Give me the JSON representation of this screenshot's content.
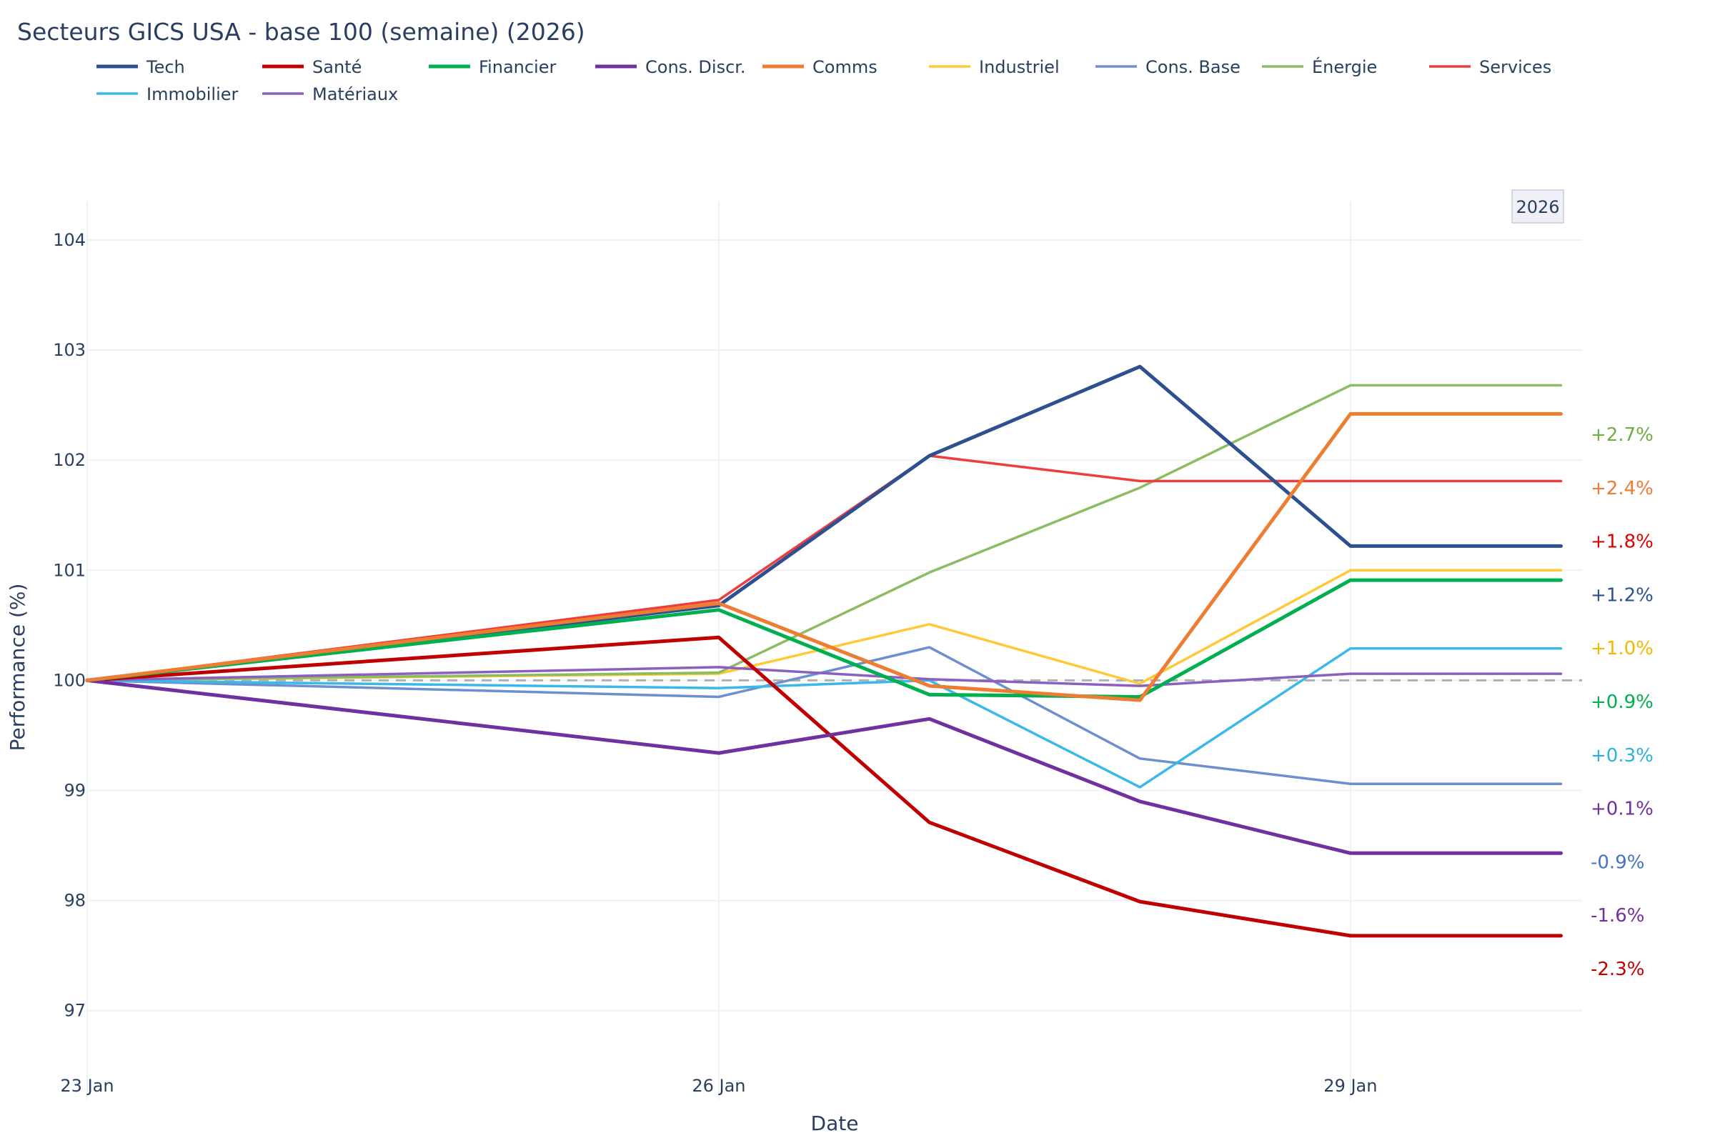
{
  "chart_data": {
    "type": "line",
    "title": "Secteurs GICS USA - base 100 (semaine) (2026)",
    "xlabel": "Date",
    "ylabel": "Performance (%)",
    "ylim": [
      96.2,
      104.35
    ],
    "yticks": [
      97,
      98,
      99,
      100,
      101,
      102,
      103,
      104
    ],
    "xticks": [
      {
        "day": 0,
        "label": "23 Jan"
      },
      {
        "day": 3,
        "label": "26 Jan"
      },
      {
        "day": 6,
        "label": "29 Jan"
      }
    ],
    "xlim": [
      0,
      7.1
    ],
    "x_days": [
      0,
      3,
      4,
      5,
      6,
      7
    ],
    "reference_line": 100,
    "year_badge": "2026",
    "series": [
      {
        "name": "Tech",
        "color": "#2e5090",
        "width": 5,
        "values": [
          100,
          100.68,
          102.04,
          102.85,
          101.22,
          101.22
        ]
      },
      {
        "name": "Santé",
        "color": "#c00000",
        "width": 5,
        "values": [
          100,
          100.39,
          98.71,
          97.99,
          97.68,
          97.68
        ]
      },
      {
        "name": "Financier",
        "color": "#00b050",
        "width": 5,
        "values": [
          100,
          100.64,
          99.87,
          99.85,
          100.91,
          100.91
        ]
      },
      {
        "name": "Cons. Discr.",
        "color": "#7030a0",
        "width": 5,
        "values": [
          100,
          99.34,
          99.65,
          98.9,
          98.43,
          98.43
        ]
      },
      {
        "name": "Comms",
        "color": "#ed7d31",
        "width": 5,
        "values": [
          100,
          100.7,
          99.95,
          99.82,
          102.42,
          102.42
        ]
      },
      {
        "name": "Industriel",
        "color": "#ffc837",
        "width": 3.5,
        "values": [
          100,
          100.06,
          100.51,
          99.97,
          101.0,
          101.0
        ]
      },
      {
        "name": "Cons. Base",
        "color": "#6b8fcf",
        "width": 3.5,
        "values": [
          100,
          99.85,
          100.3,
          99.29,
          99.06,
          99.06
        ]
      },
      {
        "name": "Énergie",
        "color": "#8dbb62",
        "width": 3.5,
        "values": [
          100,
          100.07,
          100.98,
          101.75,
          102.68,
          102.68
        ]
      },
      {
        "name": "Services",
        "color": "#f03c3c",
        "width": 3.5,
        "values": [
          100,
          100.73,
          102.04,
          101.81,
          101.81,
          101.81
        ]
      },
      {
        "name": "Immobilier",
        "color": "#3bb8ea",
        "width": 3.5,
        "values": [
          100,
          99.93,
          100.0,
          99.03,
          100.29,
          100.29
        ]
      },
      {
        "name": "Matériaux",
        "color": "#8a5fc0",
        "width": 3.5,
        "values": [
          100,
          100.12,
          100.01,
          99.95,
          100.06,
          100.06
        ]
      }
    ],
    "end_labels": [
      {
        "text": "+2.7%",
        "color": "#71ad47"
      },
      {
        "text": "+2.4%",
        "color": "#ed7d31"
      },
      {
        "text": "+1.8%",
        "color": "#e00000"
      },
      {
        "text": "+1.2%",
        "color": "#2e5090"
      },
      {
        "text": "+1.0%",
        "color": "#f5b800"
      },
      {
        "text": "+0.9%",
        "color": "#00b050"
      },
      {
        "text": "+0.3%",
        "color": "#2eb0e0"
      },
      {
        "text": "+0.1%",
        "color": "#7030a0"
      },
      {
        "text": "-0.9%",
        "color": "#4472c4"
      },
      {
        "text": "-1.6%",
        "color": "#7030a0"
      },
      {
        "text": "-2.3%",
        "color": "#c00000"
      }
    ]
  }
}
